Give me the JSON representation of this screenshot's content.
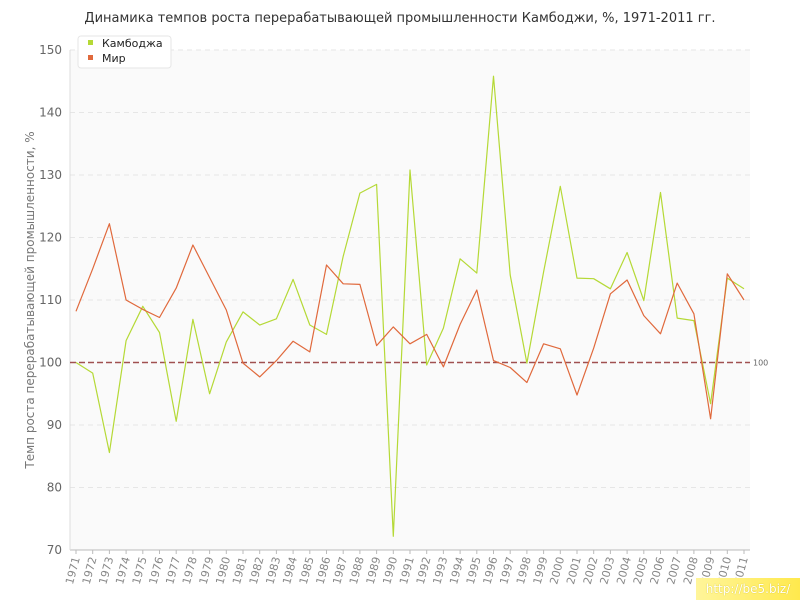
{
  "chart_data": {
    "type": "line",
    "title": "Динамика темпов роста перерабатывающей промышленности Камбоджи, %, 1971-2011 гг.",
    "ylabel": "Темп роста перерабатывающей промышленности, %",
    "xlabel": "",
    "ylim": [
      70,
      150
    ],
    "yticks": [
      70,
      80,
      90,
      100,
      110,
      120,
      130,
      140,
      150
    ],
    "x": [
      "1971",
      "1972",
      "1973",
      "1974",
      "1975",
      "1976",
      "1977",
      "1978",
      "1979",
      "1980",
      "1981",
      "1982",
      "1983",
      "1984",
      "1985",
      "1986",
      "1987",
      "1988",
      "1989",
      "1990",
      "1991",
      "1992",
      "1993",
      "1994",
      "1995",
      "1996",
      "1997",
      "1998",
      "1999",
      "2000",
      "2001",
      "2002",
      "2003",
      "2004",
      "2005",
      "2006",
      "2007",
      "2008",
      "2009",
      "2010",
      "2011"
    ],
    "series": [
      {
        "name": "Камбоджа",
        "color": "#b5d936",
        "values": [
          100.0,
          98.3,
          85.6,
          103.5,
          109.0,
          104.8,
          90.6,
          106.9,
          95.0,
          103.3,
          108.1,
          106.0,
          107.0,
          113.3,
          106.0,
          104.5,
          117.0,
          127.1,
          128.5,
          72.2,
          130.8,
          99.6,
          105.5,
          116.6,
          114.3,
          145.8,
          114.0,
          99.9,
          114.5,
          128.2,
          113.5,
          113.4,
          111.8,
          117.6,
          109.9,
          127.2,
          107.1,
          106.7,
          93.4,
          113.5,
          111.8
        ]
      },
      {
        "name": "Мир",
        "color": "#e0693c",
        "values": [
          108.2,
          115.0,
          122.2,
          110.0,
          108.5,
          107.2,
          111.9,
          118.8,
          113.6,
          108.4,
          99.9,
          97.7,
          100.3,
          103.4,
          101.7,
          115.6,
          112.6,
          112.5,
          102.7,
          105.7,
          103.0,
          104.5,
          99.3,
          106.1,
          111.6,
          100.3,
          99.2,
          96.8,
          103.0,
          102.2,
          94.8,
          102.3,
          111.0,
          113.2,
          107.5,
          104.6,
          112.7,
          107.8,
          91.0,
          114.2,
          110.0
        ]
      }
    ],
    "reference_line": {
      "value": 100,
      "label": "100",
      "color": "#a05050"
    },
    "grid": true,
    "legend": "top-left"
  },
  "watermark": "http://be5.biz/"
}
